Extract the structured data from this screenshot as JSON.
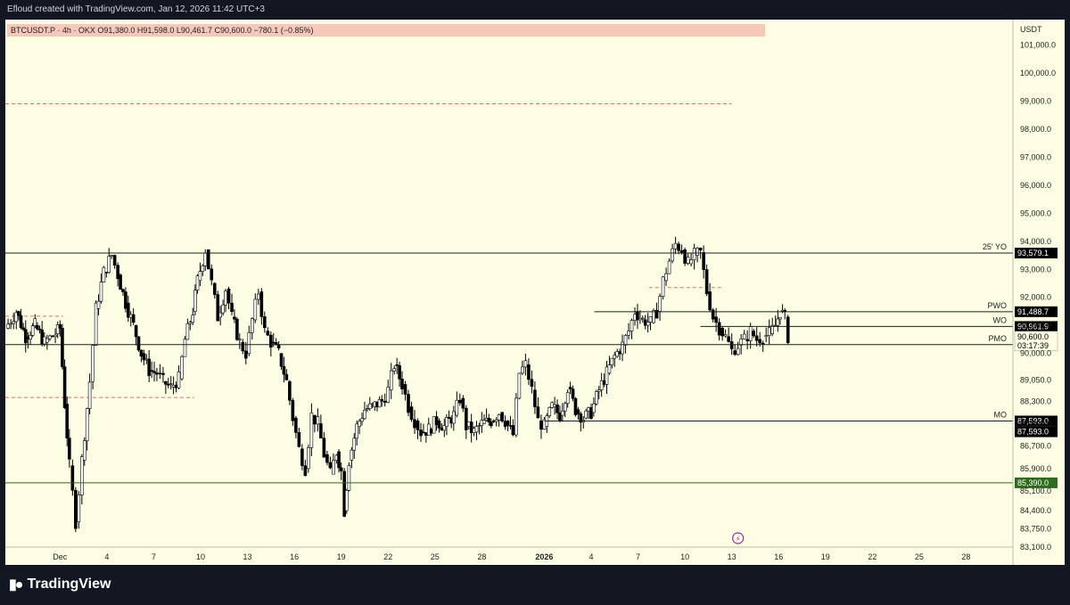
{
  "header": {
    "credit": "Efloud created with TradingView.com, Jan 12, 2026 11:42 UTC+3"
  },
  "footer": {
    "brand": "TradingView"
  },
  "colors": {
    "background": "#fdfde3",
    "candle_up": "#ffffff",
    "candle_down": "#000000",
    "level_line": "#1e1e1e",
    "support_line": "#2e6b1f",
    "dashed_level": "#e07070",
    "legend_band": "#f6c8bc",
    "event_icon": "#9c27b0"
  },
  "chart_data": {
    "type": "candlestick",
    "symbol_legend": "BTCUSDT.P · 4h · OKX  O91,380.0  H91,598.0  L90,461.7  C90,600.0  −780.1 (−0.85%)",
    "currency": "USDT",
    "ylim": [
      83100,
      101900
    ],
    "y_ticks": [
      "83,100.0",
      "83,750.0",
      "84,400.0",
      "85,100.0",
      "85,900.0",
      "86,700.0",
      "87,500.0",
      "88,300.0",
      "89,050.0",
      "90,000.0",
      "91,000.0",
      "92,000.0",
      "93,000.0",
      "94,000.0",
      "95,000.0",
      "96,000.0",
      "97,000.0",
      "98,000.0",
      "99,000.0",
      "100,000.0",
      "101,000.0"
    ],
    "x_labels": [
      "Dec",
      "4",
      "7",
      "10",
      "13",
      "16",
      "19",
      "22",
      "25",
      "28",
      "2026",
      "4",
      "7",
      "10",
      "13",
      "16",
      "19",
      "22",
      "25",
      "28"
    ],
    "x_label_days": [
      1,
      4,
      7,
      10,
      13,
      16,
      19,
      22,
      25,
      28,
      32,
      35,
      38,
      41,
      44,
      47,
      50,
      53,
      56,
      59
    ],
    "x_range_days": [
      -2.5,
      62
    ],
    "time_note": "x positions in days since Dec 1, 2025",
    "levels": [
      {
        "name": "25' YO",
        "value": 93579.1,
        "label": "93,579.1",
        "color": "#1e1e1e",
        "start_day": -2.5,
        "badge": "dark"
      },
      {
        "name": "PWO",
        "value": 91488.7,
        "label": "91,488.7",
        "color": "#1e1e1e",
        "start_day": 35.2,
        "badge": "dark"
      },
      {
        "name": "WO",
        "value": 90961.9,
        "label": "90,961.9",
        "color": "#1e1e1e",
        "start_day": 42.0,
        "badge": "dark"
      },
      {
        "name": "PMO",
        "value": 90316.6,
        "label": "90,316.6",
        "color": "#1e1e1e",
        "start_day": -2.5,
        "badge": "dark"
      },
      {
        "name": "MO",
        "value": 87593.0,
        "label": "87,593.0",
        "color": "#1e1e1e",
        "start_day": 32.0,
        "badge": "dark"
      },
      {
        "name": "",
        "value": 85390.0,
        "label": "85,390.0",
        "color": "#2e6b1f",
        "start_day": -2.5,
        "badge": "green"
      }
    ],
    "extra_badges": [
      {
        "label": "87,593.0",
        "value": 87210
      }
    ],
    "price_badge": {
      "value": 90600.0,
      "label": "90,600.0",
      "countdown": "03:17:39"
    },
    "dashed_levels": [
      {
        "value": 98900,
        "from_day": -2.5,
        "to_day": 44.0
      },
      {
        "value": 92350,
        "from_day": 38.7,
        "to_day": 43.5
      },
      {
        "value": 91330,
        "from_day": -2.5,
        "to_day": 1.2
      },
      {
        "value": 88430,
        "from_day": -2.5,
        "to_day": 9.6
      }
    ],
    "price_path": [
      [
        -2.5,
        90900
      ],
      [
        -1.8,
        91500
      ],
      [
        -1.2,
        90600
      ],
      [
        -0.6,
        91000
      ],
      [
        0,
        90400
      ],
      [
        0.7,
        90700
      ],
      [
        1.0,
        90900
      ],
      [
        1.3,
        88200
      ],
      [
        1.6,
        86000
      ],
      [
        2.0,
        84000
      ],
      [
        2.4,
        86200
      ],
      [
        2.9,
        89000
      ],
      [
        3.3,
        91600
      ],
      [
        3.8,
        92900
      ],
      [
        4.3,
        93500
      ],
      [
        4.7,
        92800
      ],
      [
        5.2,
        91800
      ],
      [
        5.7,
        91000
      ],
      [
        6.2,
        90000
      ],
      [
        6.7,
        89400
      ],
      [
        7.2,
        89300
      ],
      [
        7.6,
        89000
      ],
      [
        8.1,
        88800
      ],
      [
        8.6,
        89100
      ],
      [
        9.0,
        90500
      ],
      [
        9.5,
        91500
      ],
      [
        9.8,
        92600
      ],
      [
        10.3,
        93700
      ],
      [
        10.7,
        92500
      ],
      [
        11.1,
        91300
      ],
      [
        11.6,
        92300
      ],
      [
        12.0,
        91300
      ],
      [
        12.5,
        90400
      ],
      [
        12.9,
        90000
      ],
      [
        13.3,
        91200
      ],
      [
        13.7,
        92200
      ],
      [
        14.1,
        90800
      ],
      [
        14.5,
        90400
      ],
      [
        15.0,
        90000
      ],
      [
        15.5,
        89000
      ],
      [
        15.9,
        87700
      ],
      [
        16.3,
        86600
      ],
      [
        16.7,
        85900
      ],
      [
        17.1,
        87800
      ],
      [
        17.5,
        87500
      ],
      [
        17.9,
        86400
      ],
      [
        18.3,
        85700
      ],
      [
        18.7,
        86500
      ],
      [
        19.0,
        85800
      ],
      [
        19.2,
        84400
      ],
      [
        19.5,
        86200
      ],
      [
        20.0,
        87400
      ],
      [
        20.5,
        88000
      ],
      [
        21.0,
        88100
      ],
      [
        21.6,
        88300
      ],
      [
        22.0,
        88700
      ],
      [
        22.4,
        89600
      ],
      [
        22.9,
        88900
      ],
      [
        23.3,
        88100
      ],
      [
        23.7,
        87600
      ],
      [
        24.1,
        87200
      ],
      [
        24.6,
        87300
      ],
      [
        25.1,
        87600
      ],
      [
        25.6,
        87400
      ],
      [
        26.2,
        87800
      ],
      [
        26.6,
        88400
      ],
      [
        27.0,
        87400
      ],
      [
        27.5,
        87200
      ],
      [
        28.0,
        87500
      ],
      [
        28.6,
        87600
      ],
      [
        29.1,
        87900
      ],
      [
        29.5,
        87600
      ],
      [
        30.0,
        87100
      ],
      [
        30.4,
        89300
      ],
      [
        30.8,
        89600
      ],
      [
        31.2,
        88700
      ],
      [
        31.6,
        87600
      ],
      [
        32.0,
        87400
      ],
      [
        32.5,
        88100
      ],
      [
        33.0,
        87800
      ],
      [
        33.5,
        88800
      ],
      [
        34.0,
        88000
      ],
      [
        34.5,
        87700
      ],
      [
        35.0,
        87900
      ],
      [
        35.5,
        88700
      ],
      [
        36.0,
        89300
      ],
      [
        36.5,
        89900
      ],
      [
        37.0,
        90300
      ],
      [
        37.4,
        90800
      ],
      [
        37.8,
        91500
      ],
      [
        38.3,
        91200
      ],
      [
        38.8,
        91100
      ],
      [
        39.2,
        91500
      ],
      [
        39.6,
        92600
      ],
      [
        40.0,
        93300
      ],
      [
        40.4,
        93900
      ],
      [
        40.8,
        93700
      ],
      [
        41.2,
        93200
      ],
      [
        41.6,
        93500
      ],
      [
        42.0,
        93600
      ],
      [
        42.4,
        92200
      ],
      [
        42.8,
        91300
      ],
      [
        43.2,
        90900
      ],
      [
        43.6,
        90600
      ],
      [
        44.0,
        90100
      ],
      [
        44.4,
        90300
      ],
      [
        44.8,
        90500
      ],
      [
        45.2,
        90800
      ],
      [
        45.6,
        90500
      ],
      [
        46.0,
        90600
      ],
      [
        46.4,
        90700
      ],
      [
        46.8,
        91000
      ],
      [
        47.1,
        91500
      ],
      [
        47.4,
        91300
      ],
      [
        47.6,
        90600
      ]
    ],
    "event_icon_day": 44.4
  }
}
